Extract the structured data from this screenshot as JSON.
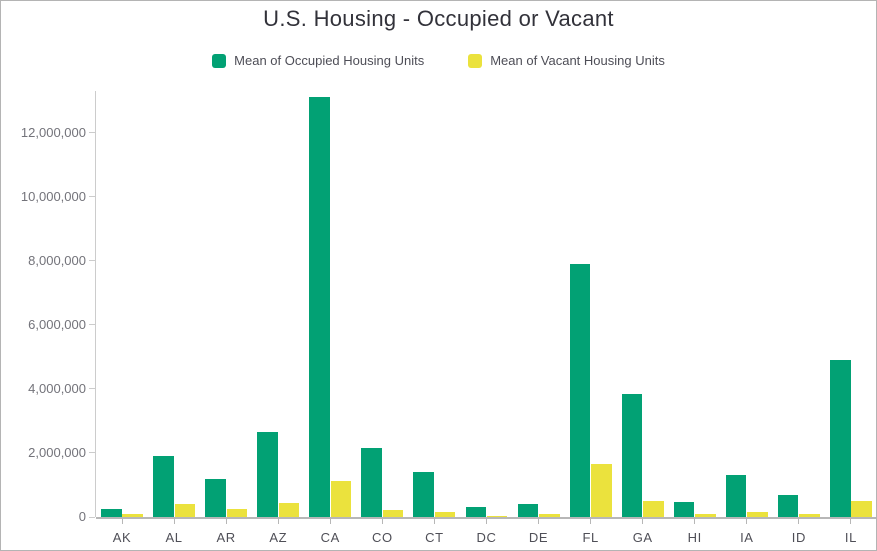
{
  "title": "U.S. Housing - Occupied or Vacant",
  "legend": {
    "items": [
      {
        "label": "Mean of Occupied Housing Units",
        "color": "#02a174"
      },
      {
        "label": "Mean of Vacant Housing Units",
        "color": "#ebe23d"
      }
    ]
  },
  "colors": {
    "occupied": "#02a174",
    "vacant": "#ebe23d",
    "title_text": "#32323a",
    "legend_text": "#4e4e57",
    "y_tick_text": "#73737a",
    "x_label_text": "#4f4f57",
    "y_axis_line": "#cccccc",
    "x_axis_line": "#b7b7b7",
    "panel_border": "#b4b4b4"
  },
  "chart_data": {
    "type": "bar",
    "title": "U.S. Housing - Occupied or Vacant",
    "categories": [
      "AK",
      "AL",
      "AR",
      "AZ",
      "CA",
      "CO",
      "CT",
      "DC",
      "DE",
      "FL",
      "GA",
      "HI",
      "IA",
      "ID",
      "IL"
    ],
    "series": [
      {
        "name": "Mean of Occupied Housing Units",
        "color": "#02a174",
        "values": [
          260000,
          1900000,
          1200000,
          2650000,
          13100000,
          2150000,
          1400000,
          300000,
          400000,
          7900000,
          3850000,
          480000,
          1300000,
          700000,
          4900000
        ]
      },
      {
        "name": "Mean of Vacant Housing Units",
        "color": "#ebe23d",
        "values": [
          90000,
          400000,
          240000,
          430000,
          1130000,
          230000,
          170000,
          35000,
          80000,
          1650000,
          500000,
          100000,
          170000,
          100000,
          510000
        ]
      }
    ],
    "xlabel": "",
    "ylabel": "",
    "ylim": [
      0,
      13300000
    ],
    "yticks": [
      0,
      2000000,
      4000000,
      6000000,
      8000000,
      10000000,
      12000000
    ],
    "ytick_labels": [
      "0",
      "2,000,000",
      "4,000,000",
      "6,000,000",
      "8,000,000",
      "10,000,000",
      "12,000,000"
    ],
    "grid": false,
    "legend_position": "top"
  }
}
